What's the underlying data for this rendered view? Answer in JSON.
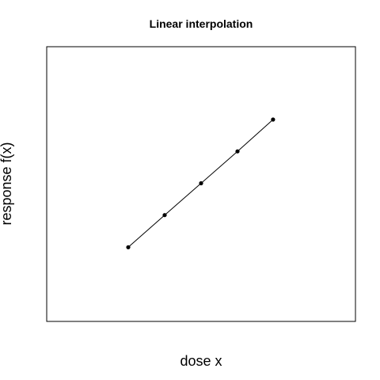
{
  "chart_data": {
    "type": "line",
    "title": "Linear interpolation",
    "xlabel": "dose x",
    "ylabel": "response f(x)",
    "axes_visible": false,
    "grid": false,
    "legend": "none",
    "xlim": [
      0,
      1
    ],
    "ylim": [
      0,
      1
    ],
    "series": [
      {
        "x": [
          0.264,
          0.382,
          0.5,
          0.618,
          0.733
        ],
        "y": [
          0.27,
          0.387,
          0.503,
          0.619,
          0.735
        ],
        "marker": "filled-circle",
        "line": "solid",
        "color": "#000000"
      }
    ]
  }
}
